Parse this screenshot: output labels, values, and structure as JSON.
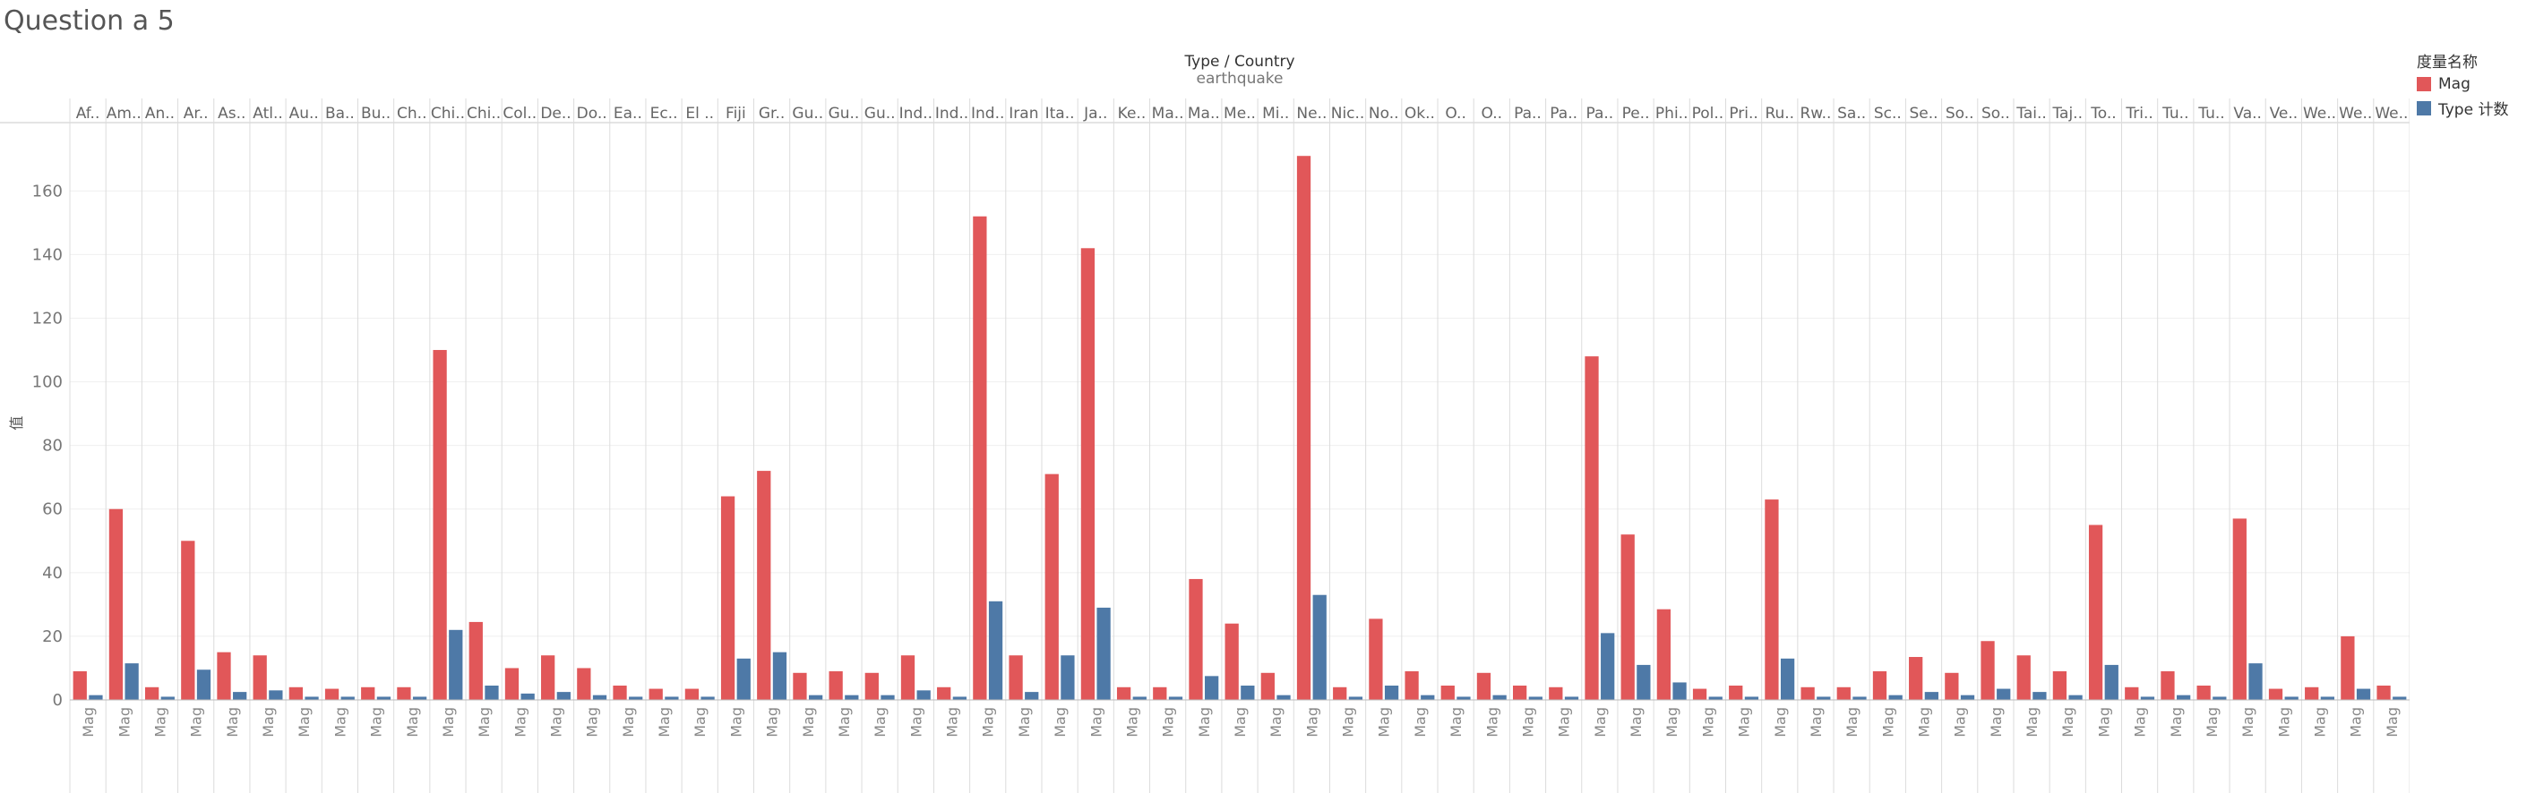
{
  "page": {
    "title": "Question a 5"
  },
  "legend": {
    "title": "度量名称",
    "items": [
      {
        "label": "Mag",
        "color": "#e15759"
      },
      {
        "label": "Type 计数",
        "color": "#4e79a7"
      }
    ]
  },
  "chart_data": {
    "type": "bar",
    "header_title": "Type / Country",
    "header_subtitle": "earthquake",
    "ylabel": "值",
    "ylim": [
      0,
      175
    ],
    "yticks": [
      0,
      20,
      40,
      60,
      80,
      100,
      120,
      140,
      160
    ],
    "category_measure_label": "Mag",
    "categories": [
      "Af..",
      "Am..",
      "An..",
      "Ar..",
      "As..",
      "Atl..",
      "Au..",
      "Ba..",
      "Bu..",
      "Ch..",
      "Chi..",
      "Chi..",
      "Col..",
      "De..",
      "Do..",
      "Ea..",
      "Ec..",
      "El ..",
      "Fiji",
      "Gr..",
      "Gu..",
      "Gu..",
      "Gu..",
      "Ind..",
      "Ind..",
      "Ind..",
      "Iran",
      "Ita..",
      "Ja..",
      "Ke..",
      "Ma..",
      "Ma..",
      "Me..",
      "Mi..",
      "Ne..",
      "Nic..",
      "No..",
      "Ok..",
      "O..",
      "O..",
      "Pa..",
      "Pa..",
      "Pa..",
      "Pe..",
      "Phi..",
      "Pol..",
      "Pri..",
      "Ru..",
      "Rw..",
      "Sa..",
      "Sc..",
      "Se..",
      "So..",
      "So..",
      "Tai..",
      "Taj..",
      "To..",
      "Tri..",
      "Tu..",
      "Tu..",
      "Va..",
      "Ve..",
      "We..",
      "We..",
      "We.."
    ],
    "series": [
      {
        "name": "Mag",
        "color": "#e15759",
        "values": [
          9,
          60,
          4,
          50,
          15,
          14,
          4,
          3.5,
          4,
          4,
          110,
          24.5,
          10,
          14,
          10,
          4.5,
          3.5,
          3.5,
          64,
          72,
          8.5,
          9,
          8.5,
          14,
          4,
          152,
          14,
          71,
          142,
          4,
          4,
          38,
          24,
          8.5,
          171,
          4,
          25.5,
          9,
          4.5,
          8.5,
          4.5,
          4,
          108,
          52,
          28.5,
          3.5,
          4.5,
          63,
          4,
          4,
          9,
          13.5,
          8.5,
          18.5,
          14,
          9,
          55,
          4,
          9,
          4.5,
          57,
          3.5,
          4,
          20,
          4.5
        ]
      },
      {
        "name": "Type 计数",
        "color": "#4e79a7",
        "values": [
          1.5,
          11.5,
          1,
          9.5,
          2.5,
          3,
          1,
          1,
          1,
          1,
          22,
          4.5,
          2,
          2.5,
          1.5,
          1,
          1,
          1,
          13,
          15,
          1.5,
          1.5,
          1.5,
          3,
          1,
          31,
          2.5,
          14,
          29,
          1,
          1,
          7.5,
          4.5,
          1.5,
          33,
          1,
          4.5,
          1.5,
          1,
          1.5,
          1,
          1,
          21,
          11,
          5.5,
          1,
          1,
          13,
          1,
          1,
          1.5,
          2.5,
          1.5,
          3.5,
          2.5,
          1.5,
          11,
          1,
          1.5,
          1,
          11.5,
          1,
          1,
          3.5,
          1
        ]
      }
    ]
  }
}
